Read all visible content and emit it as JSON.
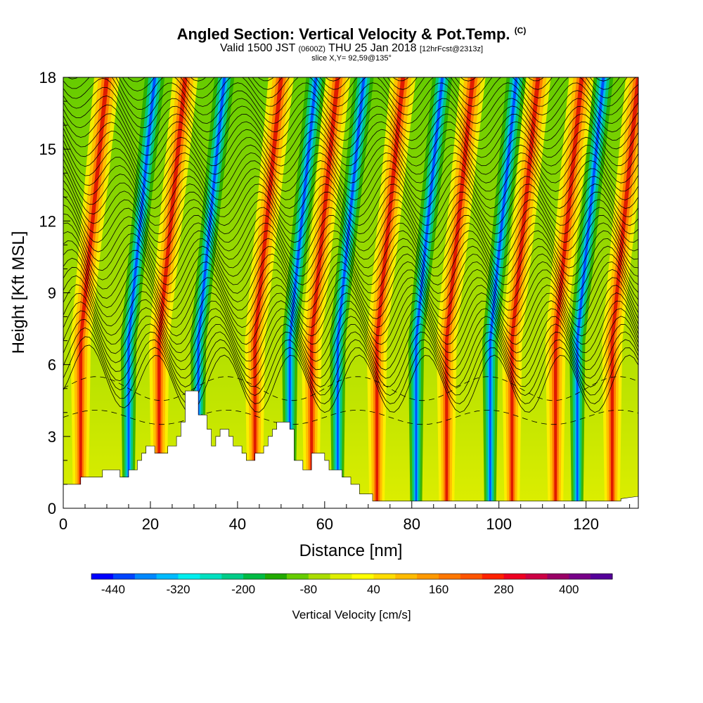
{
  "header": {
    "title": "Angled Section: Vertical Velocity & Pot.Temp.",
    "title_mark": "(C)",
    "valid_prefix": "Valid 1500 JST",
    "valid_utc": "(0600Z)",
    "valid_date": "THU 25 Jan 2018",
    "forecast": "[12hrFcst@2313z]",
    "slice": "slice X,Y= 92,59@135°"
  },
  "chart_data": {
    "type": "heatmap",
    "xlabel": "Distance [nm]",
    "ylabel": "Height [Kft MSL]",
    "xlim": [
      0,
      132
    ],
    "ylim": [
      0,
      18
    ],
    "x_ticks": [
      "0",
      "20",
      "40",
      "60",
      "80",
      "100",
      "120"
    ],
    "y_ticks": [
      "0",
      "3",
      "6",
      "9",
      "12",
      "15",
      "18"
    ],
    "colorbar": {
      "title": "Vertical Velocity [cm/s]",
      "min": -480,
      "max": 480,
      "step": 40,
      "labels": [
        "-440",
        "-320",
        "-200",
        "-80",
        "40",
        "160",
        "280",
        "400"
      ],
      "colors": [
        "#0000ff",
        "#0044ff",
        "#0088ff",
        "#00bbff",
        "#00eeee",
        "#00e0c0",
        "#00cc88",
        "#00bb44",
        "#22aa00",
        "#66cc00",
        "#aadd00",
        "#ddee00",
        "#ffff00",
        "#ffdd00",
        "#ffbb00",
        "#ff9900",
        "#ff7700",
        "#ff5500",
        "#ff2200",
        "#ee0022",
        "#cc0044",
        "#990066",
        "#770088",
        "#550099"
      ]
    },
    "updraft_bands_nm": [
      4,
      22,
      44,
      57,
      72,
      88,
      103,
      113,
      126
    ],
    "downdraft_bands_nm": [
      15,
      31,
      52,
      63,
      81,
      98,
      118
    ],
    "terrain_kft": [
      [
        0,
        1.0
      ],
      [
        4,
        1.0
      ],
      [
        4,
        1.3
      ],
      [
        9,
        1.3
      ],
      [
        9,
        1.6
      ],
      [
        13,
        1.6
      ],
      [
        13,
        1.3
      ],
      [
        15,
        1.3
      ],
      [
        15,
        1.6
      ],
      [
        17,
        1.6
      ],
      [
        17,
        2.0
      ],
      [
        18,
        2.0
      ],
      [
        18,
        2.3
      ],
      [
        19,
        2.3
      ],
      [
        19,
        2.6
      ],
      [
        21,
        2.6
      ],
      [
        21,
        2.3
      ],
      [
        24,
        2.3
      ],
      [
        24,
        2.6
      ],
      [
        26,
        2.6
      ],
      [
        26,
        3.0
      ],
      [
        27,
        3.0
      ],
      [
        27,
        3.6
      ],
      [
        28,
        3.6
      ],
      [
        28,
        4.9
      ],
      [
        31,
        4.9
      ],
      [
        31,
        3.9
      ],
      [
        33,
        3.9
      ],
      [
        33,
        3.3
      ],
      [
        34,
        3.3
      ],
      [
        34,
        2.6
      ],
      [
        35,
        2.6
      ],
      [
        35,
        3.0
      ],
      [
        36,
        3.0
      ],
      [
        36,
        3.3
      ],
      [
        38,
        3.3
      ],
      [
        38,
        3.0
      ],
      [
        39,
        3.0
      ],
      [
        39,
        2.6
      ],
      [
        41,
        2.6
      ],
      [
        41,
        2.3
      ],
      [
        42,
        2.3
      ],
      [
        42,
        2.0
      ],
      [
        44,
        2.0
      ],
      [
        44,
        2.3
      ],
      [
        46,
        2.3
      ],
      [
        46,
        2.6
      ],
      [
        47,
        2.6
      ],
      [
        47,
        3.0
      ],
      [
        48,
        3.0
      ],
      [
        48,
        3.3
      ],
      [
        49,
        3.3
      ],
      [
        49,
        3.6
      ],
      [
        52,
        3.6
      ],
      [
        52,
        3.3
      ],
      [
        53,
        3.3
      ],
      [
        53,
        2.0
      ],
      [
        55,
        2.0
      ],
      [
        55,
        1.6
      ],
      [
        57,
        1.6
      ],
      [
        57,
        2.3
      ],
      [
        60,
        2.3
      ],
      [
        60,
        2.0
      ],
      [
        61,
        2.0
      ],
      [
        61,
        1.6
      ],
      [
        64,
        1.6
      ],
      [
        64,
        1.3
      ],
      [
        66,
        1.3
      ],
      [
        66,
        1.0
      ],
      [
        68,
        1.0
      ],
      [
        68,
        0.6
      ],
      [
        71,
        0.6
      ],
      [
        71,
        0.3
      ],
      [
        128,
        0.3
      ],
      [
        128,
        0.4
      ],
      [
        132,
        0.5
      ]
    ]
  }
}
